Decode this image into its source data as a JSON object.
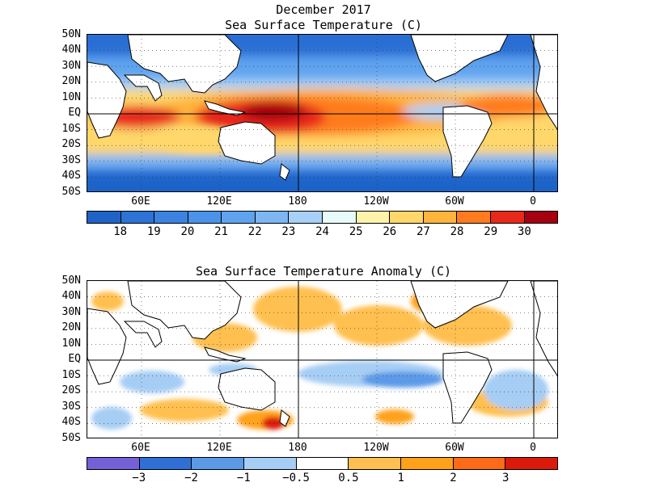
{
  "titles": {
    "line1": "December 2017",
    "line2": "Sea Surface Temperature (C)",
    "line3": "Sea Surface Temperature Anomaly (C)"
  },
  "lat_labels": [
    "50N",
    "40N",
    "30N",
    "20N",
    "10N",
    "EQ",
    "10S",
    "20S",
    "30S",
    "40S",
    "50S"
  ],
  "lon_labels": [
    "60E",
    "120E",
    "180",
    "120W",
    "60W",
    "0"
  ],
  "sst_colorbar": {
    "labels": [
      "18",
      "19",
      "20",
      "21",
      "22",
      "23",
      "24",
      "25",
      "26",
      "27",
      "28",
      "29",
      "30"
    ],
    "colors": [
      "#1f63c8",
      "#2d72d6",
      "#3c82e0",
      "#4b92ea",
      "#5fa3ef",
      "#7db6f3",
      "#a6d0f7",
      "#e8fbfb",
      "#fff3aa",
      "#ffd76a",
      "#ffb43c",
      "#ff7b1e",
      "#e8281a",
      "#a50010"
    ]
  },
  "anom_colorbar": {
    "labels": [
      "−3",
      "−2",
      "−1",
      "−0.5",
      "0.5",
      "1",
      "2",
      "3"
    ],
    "colors": [
      "#7560d8",
      "#2f6fd6",
      "#5c9ae8",
      "#a6cdf4",
      "#ffffff",
      "#ffc050",
      "#ffa21a",
      "#ff6a18",
      "#dc1a0a"
    ]
  }
}
